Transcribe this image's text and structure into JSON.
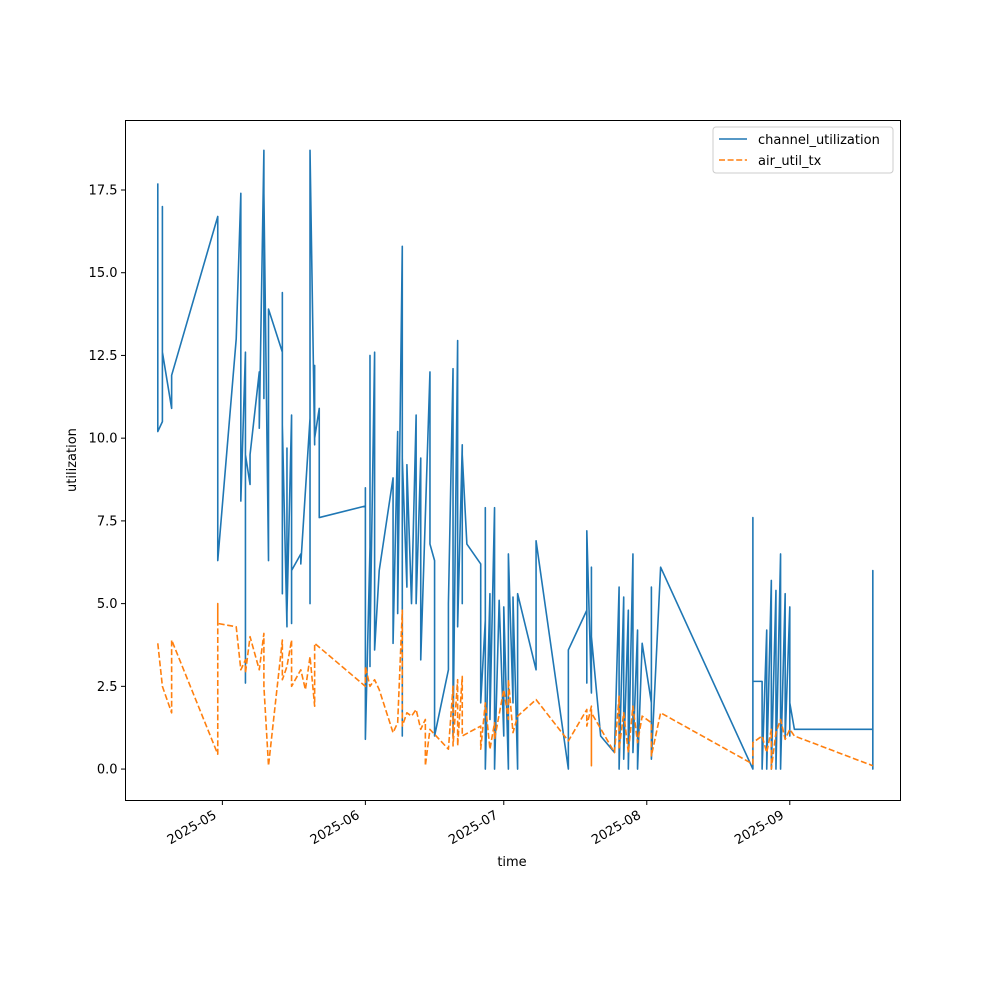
{
  "chart_data": {
    "type": "line",
    "title": "",
    "xlabel": "time",
    "ylabel": "utilization",
    "x_axis_type": "date",
    "xlim": [
      "2025-04-10",
      "2025-09-25"
    ],
    "ylim": [
      -0.95,
      19.6
    ],
    "x_ticks": [
      {
        "date": "2025-05-01",
        "label": "2025-05"
      },
      {
        "date": "2025-06-01",
        "label": "2025-06"
      },
      {
        "date": "2025-07-01",
        "label": "2025-07"
      },
      {
        "date": "2025-08-01",
        "label": "2025-08"
      },
      {
        "date": "2025-09-01",
        "label": "2025-09"
      }
    ],
    "y_ticks": [
      0.0,
      2.5,
      5.0,
      7.5,
      10.0,
      12.5,
      15.0,
      17.5
    ],
    "y_tick_labels": [
      "0.0",
      "2.5",
      "5.0",
      "7.5",
      "10.0",
      "12.5",
      "15.0",
      "17.5"
    ],
    "grid": false,
    "legend_position": "top-right",
    "series": [
      {
        "name": "channel_utilization",
        "color": "#1f77b4",
        "dash": "solid",
        "points": [
          [
            "2025-04-17",
            17.7
          ],
          [
            "2025-04-17",
            10.2
          ],
          [
            "2025-04-18",
            10.5
          ],
          [
            "2025-04-18",
            17.0
          ],
          [
            "2025-04-18",
            12.6
          ],
          [
            "2025-04-20",
            10.9
          ],
          [
            "2025-04-20",
            11.9
          ],
          [
            "2025-04-30",
            16.7
          ],
          [
            "2025-04-30",
            6.3
          ],
          [
            "2025-05-04",
            13.0
          ],
          [
            "2025-05-05",
            17.4
          ],
          [
            "2025-05-05",
            8.1
          ],
          [
            "2025-05-06",
            12.6
          ],
          [
            "2025-05-06",
            2.6
          ],
          [
            "2025-05-06",
            9.5
          ],
          [
            "2025-05-07",
            8.6
          ],
          [
            "2025-05-07",
            9.5
          ],
          [
            "2025-05-09",
            12.0
          ],
          [
            "2025-05-09",
            10.3
          ],
          [
            "2025-05-10",
            18.7
          ],
          [
            "2025-05-10",
            11.2
          ],
          [
            "2025-05-10",
            17.4
          ],
          [
            "2025-05-11",
            6.3
          ],
          [
            "2025-05-11",
            13.9
          ],
          [
            "2025-05-14",
            12.6
          ],
          [
            "2025-05-14",
            14.4
          ],
          [
            "2025-05-14",
            5.3
          ],
          [
            "2025-05-14",
            10.4
          ],
          [
            "2025-05-15",
            4.3
          ],
          [
            "2025-05-15",
            9.7
          ],
          [
            "2025-05-15",
            4.7
          ],
          [
            "2025-05-16",
            10.7
          ],
          [
            "2025-05-16",
            4.4
          ],
          [
            "2025-05-16",
            6.0
          ],
          [
            "2025-05-18",
            6.5
          ],
          [
            "2025-05-18",
            6.2
          ],
          [
            "2025-05-20",
            10.6
          ],
          [
            "2025-05-20",
            5.0
          ],
          [
            "2025-05-20",
            18.7
          ],
          [
            "2025-05-21",
            9.8
          ],
          [
            "2025-05-21",
            12.2
          ],
          [
            "2025-05-21",
            10.0
          ],
          [
            "2025-05-22",
            10.9
          ],
          [
            "2025-05-22",
            7.6
          ],
          [
            "2025-06-01",
            7.95
          ],
          [
            "2025-06-01",
            8.5
          ],
          [
            "2025-06-01",
            0.9
          ],
          [
            "2025-06-02",
            6.7
          ],
          [
            "2025-06-02",
            3.1
          ],
          [
            "2025-06-02",
            12.5
          ],
          [
            "2025-06-02",
            3.8
          ],
          [
            "2025-06-03",
            12.6
          ],
          [
            "2025-06-03",
            3.6
          ],
          [
            "2025-06-04",
            6.0
          ],
          [
            "2025-06-07",
            8.8
          ],
          [
            "2025-06-07",
            3.8
          ],
          [
            "2025-06-08",
            10.2
          ],
          [
            "2025-06-08",
            4.7
          ],
          [
            "2025-06-09",
            15.8
          ],
          [
            "2025-06-09",
            1.0
          ],
          [
            "2025-06-09",
            9.4
          ],
          [
            "2025-06-10",
            5.5
          ],
          [
            "2025-06-10",
            9.2
          ],
          [
            "2025-06-11",
            5.0
          ],
          [
            "2025-06-12",
            10.7
          ],
          [
            "2025-06-12",
            5.0
          ],
          [
            "2025-06-13",
            9.4
          ],
          [
            "2025-06-13",
            3.3
          ],
          [
            "2025-06-15",
            12.0
          ],
          [
            "2025-06-15",
            6.8
          ],
          [
            "2025-06-16",
            6.3
          ],
          [
            "2025-06-16",
            1.0
          ],
          [
            "2025-06-19",
            3.0
          ],
          [
            "2025-06-19",
            5.0
          ],
          [
            "2025-06-20",
            12.1
          ],
          [
            "2025-06-20",
            1.0
          ],
          [
            "2025-06-21",
            12.95
          ],
          [
            "2025-06-21",
            4.3
          ],
          [
            "2025-06-22",
            9.8
          ],
          [
            "2025-06-22",
            5.0
          ],
          [
            "2025-06-22",
            9.5
          ],
          [
            "2025-06-23",
            6.8
          ],
          [
            "2025-06-26",
            6.2
          ],
          [
            "2025-06-26",
            2.0
          ],
          [
            "2025-06-27",
            4.5
          ],
          [
            "2025-06-27",
            7.9
          ],
          [
            "2025-06-27",
            0.0
          ],
          [
            "2025-06-28",
            5.3
          ],
          [
            "2025-06-28",
            1.5
          ],
          [
            "2025-06-29",
            7.9
          ],
          [
            "2025-06-29",
            0.0
          ],
          [
            "2025-06-30",
            5.1
          ],
          [
            "2025-07-01",
            1.0
          ],
          [
            "2025-07-01",
            4.9
          ],
          [
            "2025-07-02",
            0.0
          ],
          [
            "2025-07-02",
            6.5
          ],
          [
            "2025-07-03",
            2.0
          ],
          [
            "2025-07-03",
            5.2
          ],
          [
            "2025-07-04",
            0.0
          ],
          [
            "2025-07-04",
            5.3
          ],
          [
            "2025-07-08",
            3.0
          ],
          [
            "2025-07-08",
            6.9
          ],
          [
            "2025-07-15",
            0.0
          ],
          [
            "2025-07-15",
            3.1
          ],
          [
            "2025-07-15",
            3.6
          ],
          [
            "2025-07-19",
            4.8
          ],
          [
            "2025-07-19",
            2.6
          ],
          [
            "2025-07-19",
            6.7
          ],
          [
            "2025-07-19",
            7.2
          ],
          [
            "2025-07-20",
            2.3
          ],
          [
            "2025-07-20",
            6.1
          ],
          [
            "2025-07-20",
            4.0
          ],
          [
            "2025-07-22",
            1.0
          ],
          [
            "2025-07-25",
            0.5
          ],
          [
            "2025-07-26",
            5.5
          ],
          [
            "2025-07-26",
            0.0
          ],
          [
            "2025-07-27",
            5.2
          ],
          [
            "2025-07-27",
            0.3
          ],
          [
            "2025-07-28",
            4.8
          ],
          [
            "2025-07-28",
            0.0
          ],
          [
            "2025-07-29",
            6.5
          ],
          [
            "2025-07-29",
            0.5
          ],
          [
            "2025-07-30",
            4.2
          ],
          [
            "2025-07-30",
            0.0
          ],
          [
            "2025-07-31",
            3.8
          ],
          [
            "2025-08-02",
            2.0
          ],
          [
            "2025-08-02",
            5.5
          ],
          [
            "2025-08-02",
            0.3
          ],
          [
            "2025-08-04",
            6.1
          ],
          [
            "2025-08-24",
            0.0
          ],
          [
            "2025-08-24",
            7.6
          ],
          [
            "2025-08-24",
            2.65
          ],
          [
            "2025-08-26",
            2.65
          ],
          [
            "2025-08-26",
            0.0
          ],
          [
            "2025-08-27",
            4.2
          ],
          [
            "2025-08-27",
            0.0
          ],
          [
            "2025-08-28",
            5.7
          ],
          [
            "2025-08-28",
            0.0
          ],
          [
            "2025-08-29",
            5.4
          ],
          [
            "2025-08-29",
            0.0
          ],
          [
            "2025-08-30",
            6.5
          ],
          [
            "2025-08-30",
            0.0
          ],
          [
            "2025-08-31",
            5.3
          ],
          [
            "2025-08-31",
            0.9
          ],
          [
            "2025-09-01",
            4.9
          ],
          [
            "2025-09-01",
            1.0
          ],
          [
            "2025-09-01",
            2.0
          ],
          [
            "2025-09-02",
            1.2
          ],
          [
            "2025-09-19",
            1.2
          ],
          [
            "2025-09-19",
            0.0
          ],
          [
            "2025-09-19",
            1.8
          ],
          [
            "2025-09-19",
            6.0
          ],
          [
            "2025-09-19",
            3.9
          ]
        ]
      },
      {
        "name": "air_util_tx",
        "color": "#ff7f0e",
        "dash": "dashed",
        "points": [
          [
            "2025-04-17",
            3.8
          ],
          [
            "2025-04-18",
            2.5
          ],
          [
            "2025-04-20",
            1.7
          ],
          [
            "2025-04-20",
            3.9
          ],
          [
            "2025-04-30",
            0.45
          ],
          [
            "2025-04-30",
            5.0
          ],
          [
            "2025-04-30",
            4.4
          ],
          [
            "2025-05-04",
            4.3
          ],
          [
            "2025-05-05",
            3.0
          ],
          [
            "2025-05-06",
            3.3
          ],
          [
            "2025-05-06",
            2.9
          ],
          [
            "2025-05-07",
            4.0
          ],
          [
            "2025-05-09",
            3.0
          ],
          [
            "2025-05-10",
            4.1
          ],
          [
            "2025-05-10",
            2.5
          ],
          [
            "2025-05-11",
            0.1
          ],
          [
            "2025-05-14",
            3.9
          ],
          [
            "2025-05-14",
            2.7
          ],
          [
            "2025-05-15",
            3.1
          ],
          [
            "2025-05-16",
            3.9
          ],
          [
            "2025-05-16",
            2.5
          ],
          [
            "2025-05-18",
            3.0
          ],
          [
            "2025-05-19",
            2.4
          ],
          [
            "2025-05-20",
            3.4
          ],
          [
            "2025-05-21",
            1.9
          ],
          [
            "2025-05-21",
            3.8
          ],
          [
            "2025-06-01",
            2.5
          ],
          [
            "2025-06-01",
            3.1
          ],
          [
            "2025-06-02",
            2.5
          ],
          [
            "2025-06-03",
            2.7
          ],
          [
            "2025-06-04",
            2.4
          ],
          [
            "2025-06-07",
            1.1
          ],
          [
            "2025-06-08",
            1.4
          ],
          [
            "2025-06-09",
            4.8
          ],
          [
            "2025-06-09",
            1.3
          ],
          [
            "2025-06-10",
            1.7
          ],
          [
            "2025-06-11",
            1.6
          ],
          [
            "2025-06-12",
            1.8
          ],
          [
            "2025-06-13",
            1.2
          ],
          [
            "2025-06-14",
            1.5
          ],
          [
            "2025-06-14",
            0.1
          ],
          [
            "2025-06-15",
            1.2
          ],
          [
            "2025-06-19",
            0.6
          ],
          [
            "2025-06-20",
            2.5
          ],
          [
            "2025-06-20",
            0.7
          ],
          [
            "2025-06-21",
            2.7
          ],
          [
            "2025-06-21",
            0.7
          ],
          [
            "2025-06-22",
            2.8
          ],
          [
            "2025-06-22",
            1.0
          ],
          [
            "2025-06-26",
            1.3
          ],
          [
            "2025-06-26",
            0.6
          ],
          [
            "2025-06-27",
            2.0
          ],
          [
            "2025-06-28",
            0.6
          ],
          [
            "2025-06-29",
            1.4
          ],
          [
            "2025-06-29",
            0.9
          ],
          [
            "2025-07-01",
            2.4
          ],
          [
            "2025-07-02",
            1.5
          ],
          [
            "2025-07-02",
            2.7
          ],
          [
            "2025-07-03",
            1.1
          ],
          [
            "2025-07-04",
            1.6
          ],
          [
            "2025-07-08",
            2.1
          ],
          [
            "2025-07-15",
            0.85
          ],
          [
            "2025-07-19",
            1.8
          ],
          [
            "2025-07-19",
            1.3
          ],
          [
            "2025-07-20",
            1.9
          ],
          [
            "2025-07-20",
            0.1
          ],
          [
            "2025-07-20",
            1.7
          ],
          [
            "2025-07-25",
            0.5
          ],
          [
            "2025-07-26",
            2.2
          ],
          [
            "2025-07-26",
            0.6
          ],
          [
            "2025-07-27",
            1.7
          ],
          [
            "2025-07-28",
            0.5
          ],
          [
            "2025-07-29",
            1.9
          ],
          [
            "2025-07-30",
            0.8
          ],
          [
            "2025-07-31",
            1.6
          ],
          [
            "2025-08-02",
            1.4
          ],
          [
            "2025-08-02",
            0.4
          ],
          [
            "2025-08-04",
            1.7
          ],
          [
            "2025-08-24",
            0.15
          ],
          [
            "2025-08-24",
            0.8
          ],
          [
            "2025-08-26",
            1.0
          ],
          [
            "2025-08-27",
            0.5
          ],
          [
            "2025-08-28",
            1.2
          ],
          [
            "2025-08-28",
            0.0
          ],
          [
            "2025-08-29",
            1.1
          ],
          [
            "2025-08-30",
            1.5
          ],
          [
            "2025-08-31",
            0.9
          ],
          [
            "2025-09-01",
            1.2
          ],
          [
            "2025-09-02",
            1.0
          ],
          [
            "2025-09-19",
            0.1
          ]
        ]
      }
    ]
  }
}
